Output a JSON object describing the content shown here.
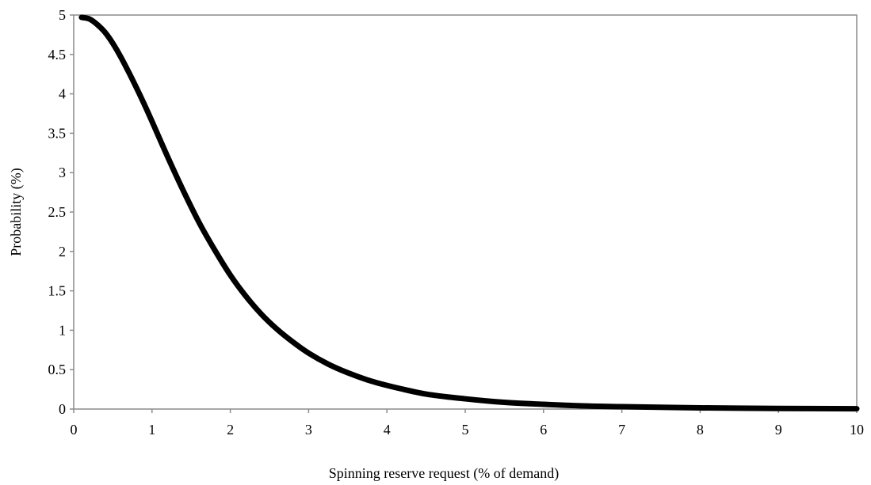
{
  "chart_data": {
    "type": "line",
    "title": "",
    "xlabel": "Spinning reserve request (% of demand)",
    "ylabel": "Probability (%)",
    "xlim": [
      0,
      10
    ],
    "ylim": [
      0,
      5
    ],
    "x_ticks": [
      "0",
      "1",
      "2",
      "3",
      "4",
      "5",
      "6",
      "7",
      "8",
      "9",
      "10"
    ],
    "y_ticks": [
      "0",
      "0.5",
      "1",
      "1.5",
      "2",
      "2.5",
      "3",
      "3.5",
      "4",
      "4.5",
      "5"
    ],
    "grid": false,
    "legend": "none",
    "series": [
      {
        "color": "#000000",
        "x": [
          0.1,
          0.2,
          0.3,
          0.4,
          0.5,
          0.6,
          0.7,
          0.8,
          0.9,
          1.0,
          1.2,
          1.4,
          1.6,
          1.8,
          2.0,
          2.2,
          2.4,
          2.6,
          2.8,
          3.0,
          3.25,
          3.5,
          3.75,
          4.0,
          4.5,
          5.0,
          5.5,
          6.0,
          6.5,
          7.0,
          8.0,
          9.0,
          10.0
        ],
        "y": [
          4.97,
          4.95,
          4.88,
          4.78,
          4.64,
          4.47,
          4.28,
          4.08,
          3.87,
          3.65,
          3.2,
          2.77,
          2.37,
          2.02,
          1.7,
          1.43,
          1.2,
          1.01,
          0.85,
          0.71,
          0.57,
          0.46,
          0.37,
          0.3,
          0.19,
          0.13,
          0.085,
          0.06,
          0.04,
          0.03,
          0.015,
          0.008,
          0.004
        ]
      }
    ]
  }
}
